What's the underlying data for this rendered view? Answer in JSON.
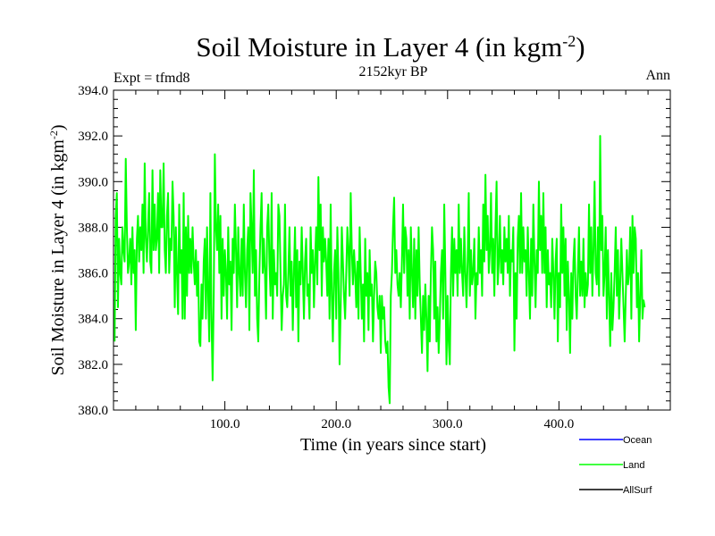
{
  "chart_data": {
    "type": "line",
    "title_main": "Soil Moisture in Layer 4 (in kgm",
    "title_sup": "-2",
    "title_close": ")",
    "subtitle": "2152kyr BP",
    "left_label": "Expt = tfmd8",
    "right_label": "Ann",
    "xlabel": "Time (in years since start)",
    "ylabel_main": "Soil Moisture in Layer 4 (in kgm",
    "ylabel_sup": "-2",
    "ylabel_close": ")",
    "xlim": [
      0,
      500
    ],
    "ylim": [
      380,
      394
    ],
    "xticks": [
      100,
      200,
      300,
      400
    ],
    "xtick_labels": [
      "100.0",
      "200.0",
      "300.0",
      "400.0"
    ],
    "yticks": [
      380,
      382,
      384,
      386,
      388,
      390,
      392,
      394
    ],
    "ytick_labels": [
      "380.0",
      "382.0",
      "384.0",
      "386.0",
      "388.0",
      "390.0",
      "392.0",
      "394.0"
    ],
    "legend": [
      {
        "name": "Ocean",
        "color": "#0000ff"
      },
      {
        "name": "Land",
        "color": "#00ff00"
      },
      {
        "name": "AllSurf",
        "color": "#000000"
      }
    ],
    "series": [
      {
        "name": "Land",
        "color": "#00ff00",
        "x_start": 1,
        "x_step": 1,
        "values": [
          383.0,
          388.5,
          389.5,
          384.5,
          387.5,
          386.0,
          385.5,
          388.0,
          387.0,
          386.5,
          391.0,
          388.0,
          386.0,
          386.5,
          387.5,
          385.5,
          388.0,
          386.0,
          387.0,
          383.5,
          387.5,
          388.5,
          386.5,
          388.0,
          387.0,
          389.0,
          386.0,
          390.8,
          387.5,
          386.5,
          388.0,
          389.5,
          386.5,
          386.0,
          390.5,
          387.0,
          389.0,
          387.0,
          387.5,
          389.5,
          386.0,
          390.5,
          388.0,
          388.0,
          390.8,
          387.0,
          386.0,
          388.5,
          389.5,
          386.0,
          387.5,
          387.0,
          390.0,
          388.5,
          384.5,
          388.0,
          386.0,
          384.2,
          389.0,
          386.0,
          387.0,
          384.0,
          389.5,
          384.0,
          388.0,
          385.0,
          388.5,
          386.0,
          387.5,
          386.0,
          388.0,
          386.5,
          385.5,
          387.0,
          385.0,
          386.5,
          383.0,
          382.8,
          385.5,
          384.0,
          386.5,
          387.5,
          384.0,
          388.0,
          385.0,
          383.0,
          389.5,
          384.0,
          381.3,
          385.0,
          391.2,
          388.0,
          387.0,
          389.0,
          386.0,
          388.5,
          384.0,
          387.5,
          385.0,
          387.0,
          386.0,
          384.0,
          388.0,
          385.5,
          386.5,
          383.5,
          387.5,
          386.0,
          389.0,
          387.0,
          384.5,
          388.0,
          386.0,
          385.0,
          387.5,
          385.0,
          389.0,
          386.0,
          384.5,
          387.0,
          388.0,
          383.5,
          389.5,
          388.0,
          386.0,
          390.5,
          385.0,
          387.0,
          384.0,
          383.0,
          386.0,
          388.0,
          389.5,
          386.0,
          387.5,
          386.0,
          384.0,
          388.0,
          389.0,
          386.5,
          385.0,
          389.5,
          384.0,
          387.0,
          385.5,
          386.0,
          385.0,
          389.0,
          388.5,
          386.0,
          383.5,
          385.0,
          385.5,
          389.0,
          385.0,
          384.5,
          386.0,
          388.0,
          385.0,
          386.5,
          383.5,
          386.0,
          388.0,
          384.5,
          387.0,
          383.0,
          386.5,
          385.5,
          388.0,
          386.0,
          384.0,
          386.5,
          387.5,
          385.0,
          385.5,
          384.0,
          388.0,
          386.0,
          387.0,
          384.5,
          386.5,
          388.0,
          385.5,
          390.2,
          387.0,
          389.0,
          385.0,
          388.0,
          386.5,
          387.5,
          386.5,
          385.0,
          387.5,
          384.0,
          389.0,
          385.0,
          383.0,
          386.0,
          387.0,
          384.0,
          388.0,
          386.0,
          382.0,
          384.5,
          388.0,
          386.5,
          385.0,
          384.0,
          386.0,
          388.0,
          387.0,
          385.0,
          389.5,
          387.0,
          385.5,
          387.0,
          386.0,
          384.5,
          386.5,
          384.0,
          388.0,
          386.0,
          384.0,
          385.5,
          383.0,
          387.5,
          385.0,
          386.0,
          383.5,
          387.0,
          385.0,
          385.5,
          383.0,
          385.0,
          386.5,
          386.0,
          384.5,
          384.0,
          385.0,
          382.5,
          385.0,
          384.0,
          384.5,
          383.0,
          382.5,
          383.0,
          381.0,
          380.3,
          385.0,
          386.0,
          388.0,
          389.3,
          386.0,
          387.0,
          385.5,
          385.0,
          386.0,
          384.5,
          386.5,
          389.0,
          386.0,
          388.0,
          387.5,
          385.0,
          387.0,
          384.0,
          388.0,
          386.0,
          384.5,
          387.5,
          384.0,
          387.0,
          385.0,
          388.0,
          385.5,
          384.0,
          382.5,
          385.0,
          383.5,
          385.5,
          384.0,
          381.7,
          385.0,
          383.0,
          386.0,
          388.0,
          387.0,
          384.0,
          386.5,
          383.0,
          384.5,
          382.5,
          384.0,
          386.0,
          387.0,
          384.0,
          389.0,
          386.0,
          382.0,
          385.0,
          383.0,
          382.0,
          386.0,
          388.0,
          385.0,
          387.5,
          386.0,
          387.0,
          385.0,
          389.0,
          386.0,
          387.5,
          386.0,
          385.0,
          388.0,
          386.0,
          384.5,
          386.5,
          389.5,
          385.0,
          387.0,
          385.5,
          386.0,
          387.5,
          384.0,
          386.0,
          385.5,
          388.0,
          386.0,
          387.0,
          385.0,
          389.0,
          386.5,
          390.3,
          387.0,
          388.5,
          386.0,
          387.0,
          389.5,
          386.0,
          387.5,
          385.0,
          388.0,
          390.0,
          385.5,
          386.5,
          388.5,
          386.0,
          387.0,
          385.5,
          388.0,
          386.5,
          387.5,
          386.0,
          388.5,
          385.0,
          387.0,
          386.5,
          388.0,
          382.6,
          386.0,
          384.0,
          387.5,
          388.5,
          386.0,
          389.5,
          386.0,
          388.0,
          386.5,
          387.0,
          385.0,
          388.0,
          386.0,
          384.0,
          387.5,
          385.0,
          389.0,
          386.5,
          384.5,
          387.0,
          386.0,
          390.0,
          387.0,
          388.5,
          386.0,
          389.5,
          386.0,
          388.0,
          384.5,
          387.0,
          385.5,
          386.0,
          384.5,
          387.5,
          386.0,
          384.0,
          386.5,
          387.5,
          383.0,
          386.0,
          384.5,
          389.0,
          386.0,
          388.0,
          385.0,
          387.5,
          383.5,
          386.5,
          385.0,
          382.5,
          386.0,
          384.0,
          386.5,
          387.5,
          385.0,
          384.0,
          386.0,
          388.0,
          385.0,
          386.5,
          385.0,
          387.5,
          384.5,
          386.0,
          385.0,
          385.5,
          389.0,
          386.0,
          388.0,
          385.0,
          387.0,
          390.0,
          386.0,
          385.5,
          388.0,
          385.0,
          392.0,
          387.0,
          388.5,
          385.0,
          386.0,
          388.0,
          384.0,
          387.0,
          385.0,
          382.8,
          386.0,
          383.5,
          384.5,
          386.0,
          388.0,
          385.0,
          387.0,
          384.0,
          385.5,
          387.5,
          386.0,
          384.5,
          383.0,
          385.0,
          387.0,
          385.5,
          386.0,
          388.0,
          384.0,
          388.5,
          386.0,
          388.0,
          387.5,
          384.5,
          386.0,
          383.0,
          385.0,
          387.0,
          384.0,
          384.8,
          384.5
        ]
      }
    ]
  }
}
